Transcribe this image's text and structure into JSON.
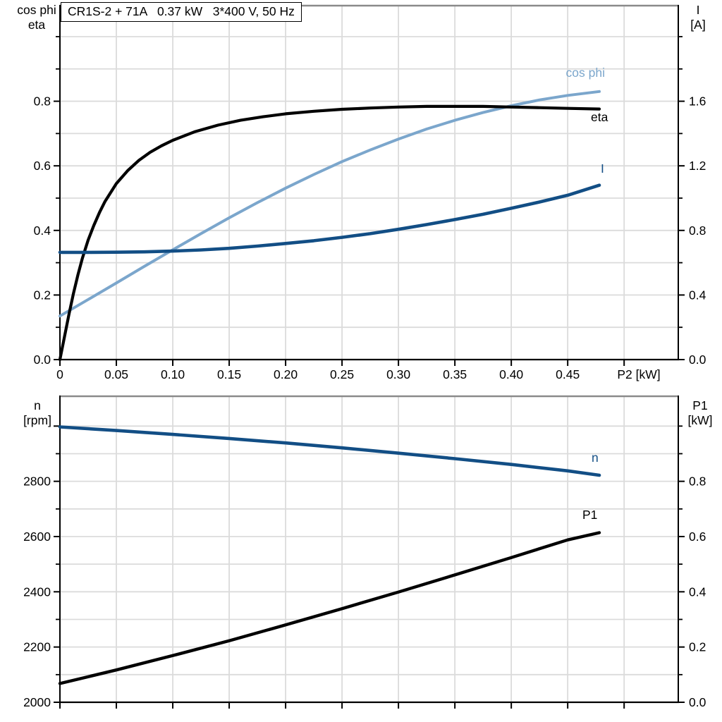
{
  "title_box": {
    "text": "CR1S-2 + 71A   0.37 kW   3*400 V, 50 Hz"
  },
  "axis_corner_labels": {
    "top_left": [
      "cos phi",
      "eta"
    ],
    "top_right": [
      "I",
      "[A]"
    ],
    "bottom_left": [
      "n",
      "[rpm]"
    ],
    "bottom_right": [
      "P1",
      "[kW]"
    ]
  },
  "colors": {
    "light_blue": "#7BA6CC",
    "dark_blue": "#124E85",
    "black": "#000000",
    "grid": "#DBDBDB",
    "frame_gray": "#8A8A8A",
    "axis_black": "#000000",
    "background": "#FFFFFF"
  },
  "chart_data": [
    {
      "type": "line",
      "title": "Motor electrical curves vs shaft power",
      "xlabel": "P2 [kW]",
      "xlabel_at": 0.513,
      "ylabel_left": "cos phi / eta",
      "ylabel_right": "I [A]",
      "grid": true,
      "legend_position": "inline-curve-labels",
      "xlim": [
        0,
        0.548
      ],
      "xgrid": [
        0.05,
        0.1,
        0.15,
        0.2,
        0.25,
        0.3,
        0.35,
        0.4,
        0.45,
        0.5
      ],
      "xticks": {
        "values": [
          0,
          0.05,
          0.1,
          0.15,
          0.2,
          0.25,
          0.3,
          0.35,
          0.4,
          0.45,
          0.5
        ],
        "labels": [
          "0",
          "0.05",
          "0.10",
          "0.15",
          "0.20",
          "0.25",
          "0.30",
          "0.35",
          "0.40",
          "0.45",
          ""
        ]
      },
      "left_axis": {
        "lim": [
          0,
          1.096
        ],
        "major": [
          0,
          0.2,
          0.4,
          0.6,
          0.8
        ],
        "labels": [
          "0.0",
          "0.2",
          "0.4",
          "0.6",
          "0.8"
        ],
        "minor": [
          0.1,
          0.3,
          0.5,
          0.7,
          0.9,
          1.0
        ],
        "grid": [
          0.1,
          0.2,
          0.3,
          0.4,
          0.5,
          0.6,
          0.7,
          0.8,
          0.9,
          1.0
        ]
      },
      "right_axis": {
        "lim": [
          0,
          2.192
        ],
        "major": [
          0,
          0.4,
          0.8,
          1.2,
          1.6
        ],
        "labels": [
          "0.0",
          "0.4",
          "0.8",
          "1.2",
          "1.6"
        ],
        "minor": [
          0.2,
          0.6,
          1.0,
          1.4,
          1.8,
          2.0
        ]
      },
      "series": [
        {
          "name": "cos phi",
          "color": "#7BA6CC",
          "axis": "left",
          "width": 4.0,
          "points": [
            [
              0,
              0.135
            ],
            [
              0.025,
              0.186
            ],
            [
              0.05,
              0.237
            ],
            [
              0.075,
              0.289
            ],
            [
              0.1,
              0.34
            ],
            [
              0.125,
              0.39
            ],
            [
              0.15,
              0.439
            ],
            [
              0.175,
              0.486
            ],
            [
              0.2,
              0.531
            ],
            [
              0.225,
              0.573
            ],
            [
              0.25,
              0.613
            ],
            [
              0.275,
              0.649
            ],
            [
              0.3,
              0.683
            ],
            [
              0.325,
              0.714
            ],
            [
              0.35,
              0.741
            ],
            [
              0.375,
              0.765
            ],
            [
              0.4,
              0.786
            ],
            [
              0.425,
              0.804
            ],
            [
              0.45,
              0.818
            ],
            [
              0.478,
              0.83
            ]
          ]
        },
        {
          "name": "eta",
          "color": "#000000",
          "axis": "left",
          "width": 4.2,
          "points": [
            [
              0,
              0
            ],
            [
              0.004,
              0.07
            ],
            [
              0.008,
              0.14
            ],
            [
              0.012,
              0.205
            ],
            [
              0.016,
              0.263
            ],
            [
              0.02,
              0.315
            ],
            [
              0.025,
              0.37
            ],
            [
              0.03,
              0.415
            ],
            [
              0.035,
              0.455
            ],
            [
              0.04,
              0.49
            ],
            [
              0.05,
              0.545
            ],
            [
              0.06,
              0.585
            ],
            [
              0.07,
              0.617
            ],
            [
              0.08,
              0.642
            ],
            [
              0.09,
              0.662
            ],
            [
              0.1,
              0.679
            ],
            [
              0.12,
              0.706
            ],
            [
              0.14,
              0.726
            ],
            [
              0.16,
              0.741
            ],
            [
              0.18,
              0.752
            ],
            [
              0.2,
              0.761
            ],
            [
              0.225,
              0.769
            ],
            [
              0.25,
              0.775
            ],
            [
              0.275,
              0.779
            ],
            [
              0.3,
              0.782
            ],
            [
              0.325,
              0.784
            ],
            [
              0.35,
              0.784
            ],
            [
              0.375,
              0.784
            ],
            [
              0.4,
              0.782
            ],
            [
              0.425,
              0.78
            ],
            [
              0.45,
              0.778
            ],
            [
              0.478,
              0.776
            ]
          ]
        },
        {
          "name": "I",
          "color": "#124E85",
          "axis": "right",
          "width": 4.6,
          "points": [
            [
              0,
              0.664
            ],
            [
              0.025,
              0.664
            ],
            [
              0.05,
              0.665
            ],
            [
              0.075,
              0.667
            ],
            [
              0.1,
              0.672
            ],
            [
              0.125,
              0.679
            ],
            [
              0.15,
              0.689
            ],
            [
              0.175,
              0.703
            ],
            [
              0.2,
              0.719
            ],
            [
              0.225,
              0.736
            ],
            [
              0.25,
              0.757
            ],
            [
              0.275,
              0.78
            ],
            [
              0.3,
              0.807
            ],
            [
              0.325,
              0.836
            ],
            [
              0.35,
              0.867
            ],
            [
              0.375,
              0.9
            ],
            [
              0.4,
              0.937
            ],
            [
              0.425,
              0.976
            ],
            [
              0.45,
              1.018
            ],
            [
              0.478,
              1.08
            ]
          ]
        }
      ]
    },
    {
      "type": "line",
      "title": "Speed and input power vs shaft power",
      "xlabel": "",
      "ylabel_left": "n [rpm]",
      "ylabel_right": "P1 [kW]",
      "grid": true,
      "legend_position": "inline-curve-labels",
      "xlim": [
        0,
        0.548
      ],
      "xgrid": [
        0.05,
        0.1,
        0.15,
        0.2,
        0.25,
        0.3,
        0.35,
        0.4,
        0.45,
        0.5
      ],
      "xticks": {
        "values": [
          0,
          0.05,
          0.1,
          0.15,
          0.2,
          0.25,
          0.3,
          0.35,
          0.4,
          0.45,
          0.5
        ],
        "labels": null
      },
      "left_axis": {
        "lim": [
          2000,
          3108
        ],
        "major": [
          2000,
          2200,
          2400,
          2600,
          2800,
          3000
        ],
        "labels": [
          "2000",
          "2200",
          "2400",
          "2600",
          "2800",
          ""
        ],
        "minor": [
          2100,
          2300,
          2500,
          2700,
          2900
        ],
        "grid": [
          2100,
          2200,
          2300,
          2400,
          2500,
          2600,
          2700,
          2800,
          2900,
          3000
        ]
      },
      "right_axis": {
        "lim": [
          0,
          1.108
        ],
        "major": [
          0,
          0.2,
          0.4,
          0.6,
          0.8
        ],
        "labels": [
          "0.0",
          "0.2",
          "0.4",
          "0.6",
          "0.8"
        ],
        "minor": [
          0.1,
          0.3,
          0.5,
          0.7,
          0.9,
          1.0
        ]
      },
      "series": [
        {
          "name": "n",
          "color": "#124E85",
          "axis": "left",
          "width": 4.6,
          "points": [
            [
              0,
              2997
            ],
            [
              0.05,
              2984
            ],
            [
              0.1,
              2970
            ],
            [
              0.15,
              2955
            ],
            [
              0.2,
              2939
            ],
            [
              0.25,
              2921
            ],
            [
              0.3,
              2902
            ],
            [
              0.35,
              2882
            ],
            [
              0.4,
              2861
            ],
            [
              0.45,
              2838
            ],
            [
              0.478,
              2822
            ]
          ]
        },
        {
          "name": "P1",
          "color": "#000000",
          "axis": "left-p1",
          "width": 4.4,
          "points": [
            [
              0,
              0.068
            ],
            [
              0.05,
              0.117
            ],
            [
              0.1,
              0.169
            ],
            [
              0.15,
              0.223
            ],
            [
              0.2,
              0.28
            ],
            [
              0.25,
              0.339
            ],
            [
              0.3,
              0.399
            ],
            [
              0.35,
              0.461
            ],
            [
              0.4,
              0.524
            ],
            [
              0.45,
              0.588
            ],
            [
              0.478,
              0.614
            ]
          ]
        }
      ]
    }
  ]
}
